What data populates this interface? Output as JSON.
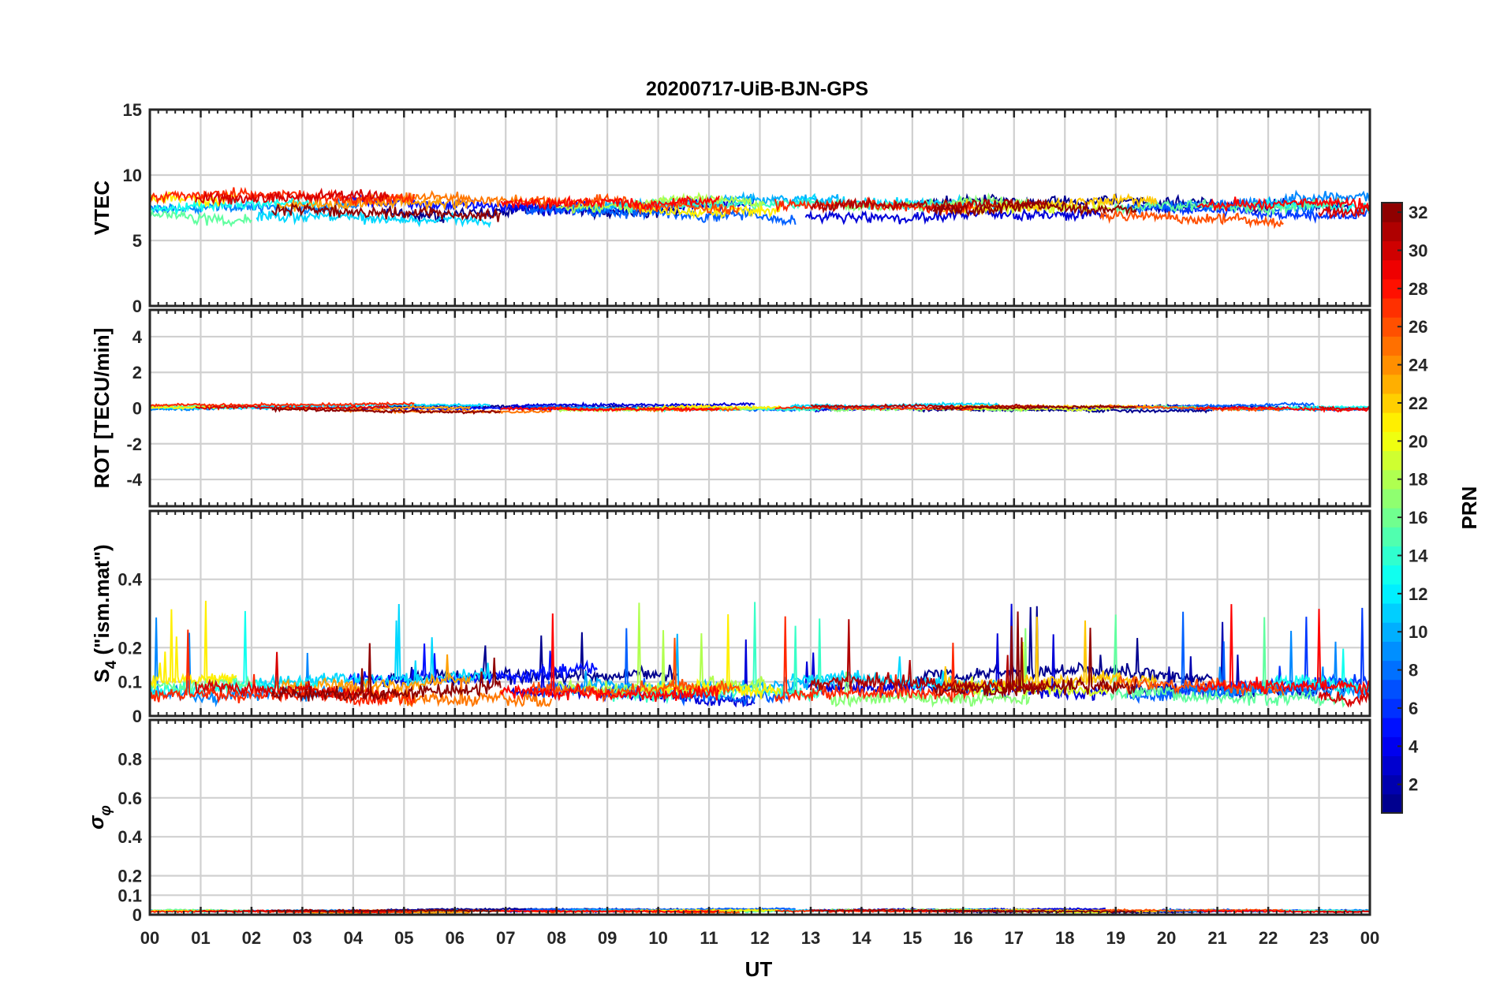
{
  "chart_data": {
    "type": "line",
    "title": "20200717-UiB-BJN-GPS",
    "xlabel": "UT",
    "x_range": [
      0,
      24
    ],
    "x_ticks": [
      "00",
      "01",
      "02",
      "03",
      "04",
      "05",
      "06",
      "07",
      "08",
      "09",
      "10",
      "11",
      "12",
      "13",
      "14",
      "15",
      "16",
      "17",
      "18",
      "19",
      "20",
      "21",
      "22",
      "23",
      "00"
    ],
    "panels": [
      {
        "id": "vtec",
        "ylabel": "VTEC",
        "ylim": [
          0,
          15
        ],
        "yticks": [
          0,
          5,
          10,
          15
        ],
        "ytick_labels": [
          "0",
          "5",
          "10",
          "15"
        ],
        "grid": true,
        "series_level": 7.5,
        "series_spread": 1.0
      },
      {
        "id": "rot",
        "ylabel": "ROT [TECU/min]",
        "ylim": [
          -5.5,
          5.5
        ],
        "yticks": [
          -4,
          -2,
          0,
          2,
          4
        ],
        "ytick_labels": [
          "-4",
          "-2",
          "0",
          "2",
          "4"
        ],
        "grid": true,
        "series_level": 0.0,
        "series_spread": 0.2
      },
      {
        "id": "s4",
        "ylabel": "S4 (\"ism.mat\")",
        "ylabel_main": "S",
        "ylabel_sub": "4",
        "ylabel_rest": " (\"ism.mat\")",
        "ylim": [
          0,
          0.6
        ],
        "yticks": [
          0,
          0.1,
          0.2,
          0.4
        ],
        "ytick_labels": [
          "0",
          "0.1",
          "0.2",
          "0.4"
        ],
        "grid": true,
        "series_level": 0.08,
        "series_spread": 0.05
      },
      {
        "id": "sigma_phi",
        "ylabel": "σ φ",
        "ylabel_main": "σ",
        "ylabel_sub": "φ",
        "ylim": [
          0,
          1
        ],
        "yticks": [
          0,
          0.1,
          0.2,
          0.4,
          0.6,
          0.8
        ],
        "ytick_labels": [
          "0",
          "0.1",
          "0.2",
          "0.4",
          "0.6",
          "0.8"
        ],
        "grid": true,
        "series_level": 0.02,
        "series_spread": 0.01
      }
    ],
    "colorbar": {
      "label": "PRN",
      "range": [
        1,
        32
      ],
      "ticks": [
        2,
        4,
        6,
        8,
        10,
        12,
        14,
        16,
        18,
        20,
        22,
        24,
        26,
        28,
        30,
        32
      ],
      "tick_labels": [
        "2",
        "4",
        "6",
        "8",
        "10",
        "12",
        "14",
        "16",
        "18",
        "20",
        "22",
        "24",
        "26",
        "28",
        "30",
        "32"
      ],
      "colormap": "jet"
    },
    "series": [
      {
        "prn": 1,
        "color": "#00008F",
        "intervals": [
          [
            4.6,
            10.4
          ],
          [
            15.1,
            20.9
          ]
        ]
      },
      {
        "prn": 2,
        "color": "#0000B0",
        "intervals": [
          [
            19.3,
            23.6
          ]
        ]
      },
      {
        "prn": 3,
        "color": "#0000D8",
        "intervals": [
          [
            7.1,
            11.9
          ],
          [
            12.9,
            18.8
          ]
        ]
      },
      {
        "prn": 4,
        "color": "#0010FF",
        "intervals": [
          [
            3.9,
            8.8
          ]
        ]
      },
      {
        "prn": 5,
        "color": "#0038FF",
        "intervals": [
          [
            19.9,
            24.0
          ]
        ]
      },
      {
        "prn": 6,
        "color": "#0060FF",
        "intervals": [
          [
            7.4,
            12.7
          ],
          [
            19.2,
            22.9
          ]
        ]
      },
      {
        "prn": 7,
        "color": "#0088FF",
        "intervals": [
          [
            0.0,
            4.1
          ],
          [
            20.4,
            24.0
          ]
        ]
      },
      {
        "prn": 8,
        "color": "#00B0FF",
        "intervals": [
          [
            8.3,
            13.6
          ]
        ]
      },
      {
        "prn": 9,
        "color": "#00D8FF",
        "intervals": [
          [
            2.1,
            6.7
          ],
          [
            12.6,
            16.7
          ]
        ]
      },
      {
        "prn": 10,
        "color": "#10FFEF",
        "intervals": [
          [
            0.0,
            3.3
          ],
          [
            21.9,
            24.0
          ]
        ]
      },
      {
        "prn": 11,
        "color": "#38FFC7",
        "intervals": [
          [
            9.0,
            13.2
          ]
        ]
      },
      {
        "prn": 12,
        "color": "#60FF9F",
        "intervals": [
          [
            0.0,
            2.0
          ],
          [
            18.9,
            23.5
          ]
        ]
      },
      {
        "prn": 13,
        "color": "#88FF77",
        "intervals": [
          [
            13.4,
            17.3
          ]
        ]
      },
      {
        "prn": 14,
        "color": "#B0FF4F",
        "intervals": [
          [
            8.0,
            12.1
          ]
        ]
      },
      {
        "prn": 15,
        "color": "#D8FF27",
        "intervals": [
          [
            15.8,
            18.9
          ]
        ]
      },
      {
        "prn": 16,
        "color": "#FFEF00",
        "intervals": [
          [
            0.0,
            1.7
          ],
          [
            9.6,
            12.4
          ]
        ]
      },
      {
        "prn": 17,
        "color": "#FFC700",
        "intervals": [
          [
            15.6,
            19.8
          ]
        ]
      },
      {
        "prn": 18,
        "color": "#FF9F00",
        "intervals": [
          [
            2.5,
            6.3
          ]
        ]
      },
      {
        "prn": 19,
        "color": "#FF7700",
        "intervals": [
          [
            3.8,
            7.9
          ]
        ]
      },
      {
        "prn": 20,
        "color": "#FF4F00",
        "intervals": [
          [
            7.5,
            11.6
          ],
          [
            18.7,
            22.3
          ]
        ]
      },
      {
        "prn": 21,
        "color": "#FF2700",
        "intervals": [
          [
            0.0,
            5.2
          ],
          [
            12.3,
            16.2
          ]
        ]
      },
      {
        "prn": 22,
        "color": "#FF0000",
        "intervals": [
          [
            6.9,
            11.2
          ],
          [
            20.6,
            24.0
          ]
        ]
      },
      {
        "prn": 23,
        "color": "#D80000",
        "intervals": [
          [
            0.9,
            4.7
          ],
          [
            23.0,
            24.0
          ]
        ]
      },
      {
        "prn": 24,
        "color": "#B00000",
        "intervals": [
          [
            13.0,
            17.6
          ]
        ]
      },
      {
        "prn": 25,
        "color": "#8F0000",
        "intervals": [
          [
            2.4,
            6.9
          ],
          [
            15.4,
            19.4
          ]
        ]
      }
    ]
  }
}
